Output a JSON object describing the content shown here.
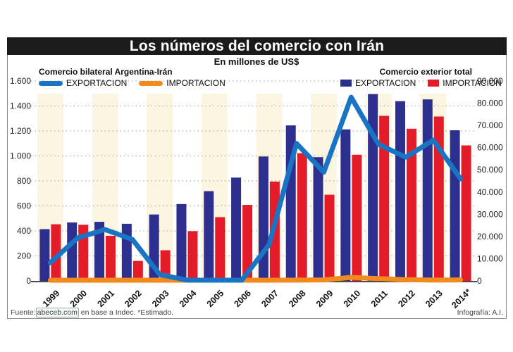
{
  "chart_data": {
    "type": "bar",
    "title": "Los números del comercio con Irán",
    "subtitle": "En millones de US$",
    "source": "Fuente: abeceb.com en base a Indec. *Estimado.",
    "source_parts": {
      "prefix": "Fuente:",
      "link": "abeceb.com",
      "suffix": "en base a Indec. *Estimado."
    },
    "credit": "Infografía: A.I.",
    "categories": [
      "1999",
      "2000",
      "2001",
      "2002",
      "2003",
      "2004",
      "2005",
      "2006",
      "2007",
      "2008",
      "2009",
      "2010",
      "2011",
      "2012",
      "2013",
      "2014*"
    ],
    "left_axis": {
      "title": "Comercio bilateral Argentina-Irán",
      "ylim": [
        0,
        1600
      ],
      "ticks": [
        0,
        200,
        400,
        600,
        800,
        1000,
        1200,
        1400,
        1600
      ],
      "tick_labels": [
        "0",
        "200",
        "400",
        "600",
        "800",
        "1.000",
        "1.200",
        "1.400",
        "1.600"
      ]
    },
    "right_axis": {
      "title": "Comercio exterior total",
      "ylim": [
        0,
        90000
      ],
      "ticks": [
        0,
        10000,
        20000,
        30000,
        40000,
        50000,
        60000,
        70000,
        80000,
        90000
      ],
      "tick_labels": [
        "0",
        "10.000",
        "20.000",
        "30.000",
        "40.000",
        "50.000",
        "60.000",
        "70.000",
        "80.000",
        "90.000"
      ]
    },
    "grid": true,
    "legend": {
      "left": [
        {
          "name": "EXPORTACION",
          "kind": "line",
          "color": "#1a74c4"
        },
        {
          "name": "IMPORTACION",
          "kind": "line",
          "color": "#f28a1e"
        }
      ],
      "right": [
        {
          "name": "EXPORTACION",
          "kind": "bar",
          "color": "#2d2f8f"
        },
        {
          "name": "IMPORTACION",
          "kind": "bar",
          "color": "#e41c2a"
        }
      ]
    },
    "series": [
      {
        "name": "Comercio exterior total - EXPORTACION",
        "type": "bar",
        "axis": "right",
        "color": "#2d2f8f",
        "values": [
          23300,
          26300,
          26600,
          25700,
          29900,
          34600,
          40400,
          46500,
          56000,
          70000,
          55700,
          68200,
          84100,
          80900,
          81700,
          67800
        ]
      },
      {
        "name": "Comercio exterior total - IMPORTACION",
        "type": "bar",
        "axis": "right",
        "color": "#e41c2a",
        "values": [
          25500,
          25300,
          20300,
          9000,
          13800,
          22400,
          28700,
          34200,
          44700,
          57500,
          38800,
          56800,
          74300,
          68500,
          74000,
          61000
        ]
      },
      {
        "name": "Comercio bilateral Argentina-Irán - EXPORTACION",
        "type": "line",
        "axis": "left",
        "color": "#1a74c4",
        "values": [
          146,
          344,
          411,
          332,
          51,
          6,
          5,
          5,
          290,
          1100,
          870,
          1470,
          1093,
          990,
          1127,
          817
        ]
      },
      {
        "name": "Comercio bilateral Argentina-Irán - IMPORTACION",
        "type": "line",
        "axis": "left",
        "color": "#f28a1e",
        "values": [
          3,
          2,
          3,
          2,
          2,
          2,
          2,
          3,
          4,
          6,
          8,
          28,
          18,
          10,
          6,
          8
        ]
      }
    ],
    "shaded_columns": [
      "1999",
      "2001",
      "2003",
      "2005",
      "2007",
      "2009",
      "2011",
      "2013"
    ],
    "shade_color": "#fbf5e2"
  }
}
